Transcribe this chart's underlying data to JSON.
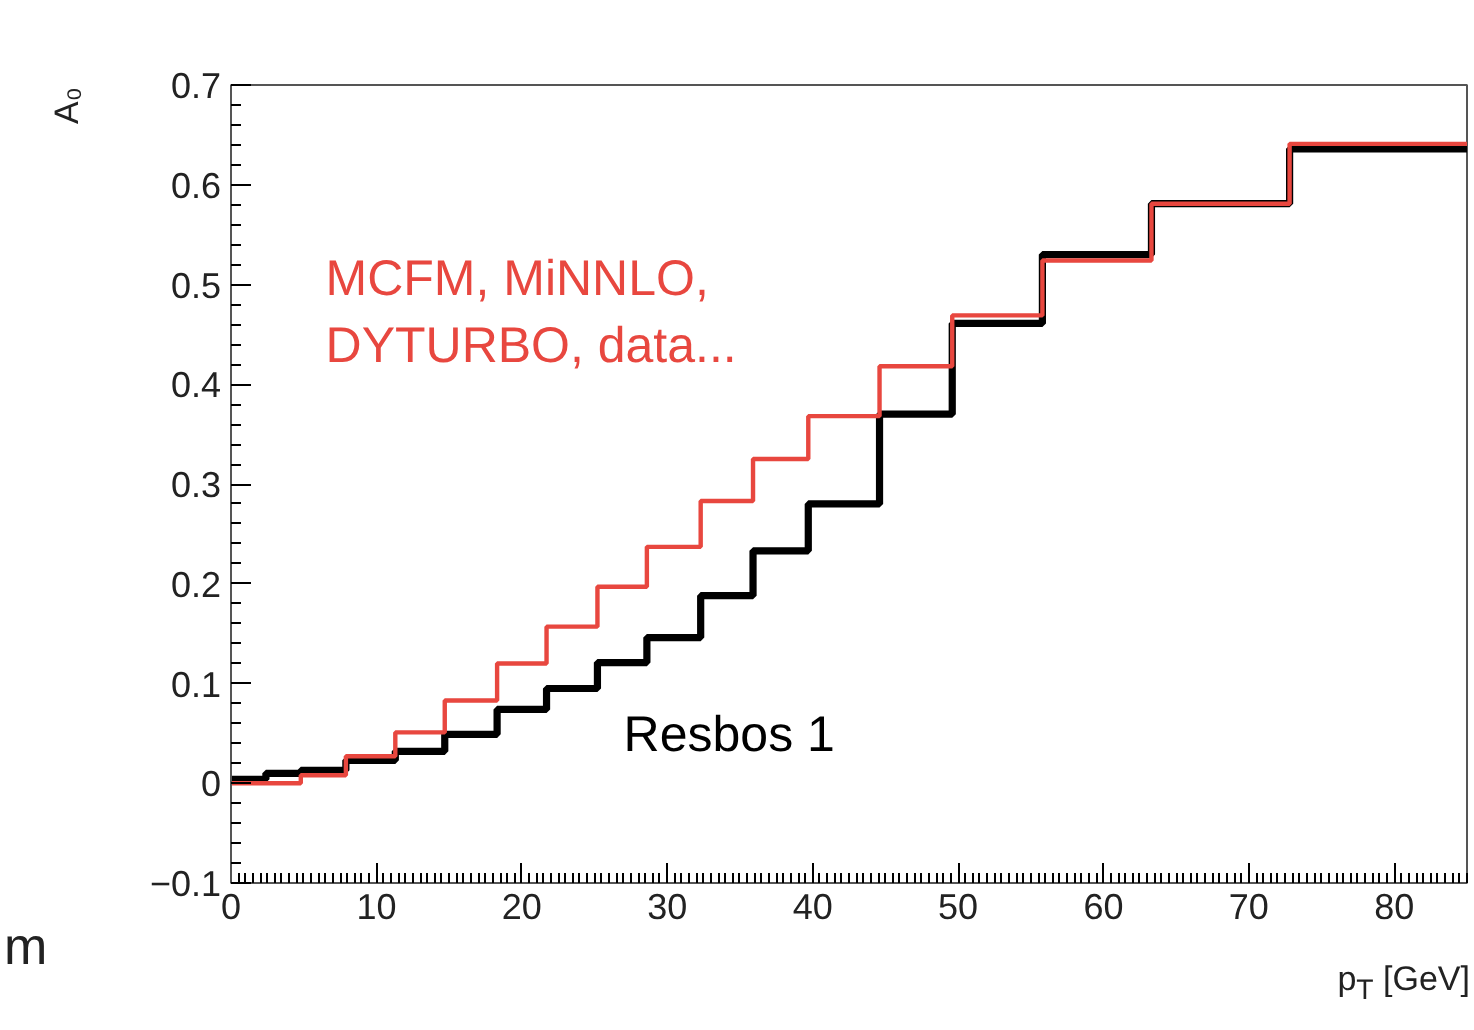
{
  "chart_data": {
    "type": "step",
    "xlabel": "p$_{T}$ [GeV]",
    "ylabel": "A₀",
    "x": [
      0,
      2.4,
      4.8,
      7.9,
      11.3,
      14.7,
      18.3,
      21.7,
      25.2,
      28.6,
      32.3,
      35.9,
      39.7,
      44.6,
      49.6,
      55.8,
      63.3,
      72.8,
      85
    ],
    "series": [
      {
        "name": "Resbos 1",
        "color": "#000000",
        "values": [
          0.004,
          0.01,
          0.013,
          0.023,
          0.032,
          0.049,
          0.074,
          0.095,
          0.121,
          0.146,
          0.188,
          0.233,
          0.28,
          0.37,
          0.461,
          0.53,
          0.581,
          0.636,
          0.636
        ]
      },
      {
        "name": "MCFM, MiNNLO,\nDYTURBO, data...",
        "color": "#e8473f",
        "values": [
          0.0,
          0.0,
          0.008,
          0.027,
          0.051,
          0.083,
          0.12,
          0.157,
          0.197,
          0.237,
          0.283,
          0.325,
          0.368,
          0.418,
          0.469,
          0.524,
          0.581,
          0.641,
          0.641
        ]
      }
    ],
    "xlim": [
      0,
      85
    ],
    "ylim": [
      -0.1,
      0.7
    ],
    "xticks": [
      0,
      10,
      20,
      30,
      40,
      50,
      60,
      70,
      80
    ],
    "yticks": [
      {
        "value": -0.1,
        "label": "−0.1"
      },
      0,
      0.1,
      0.2,
      0.3,
      0.4,
      0.5,
      0.6,
      0.7
    ],
    "grid": false,
    "annotations": [
      "m"
    ]
  }
}
